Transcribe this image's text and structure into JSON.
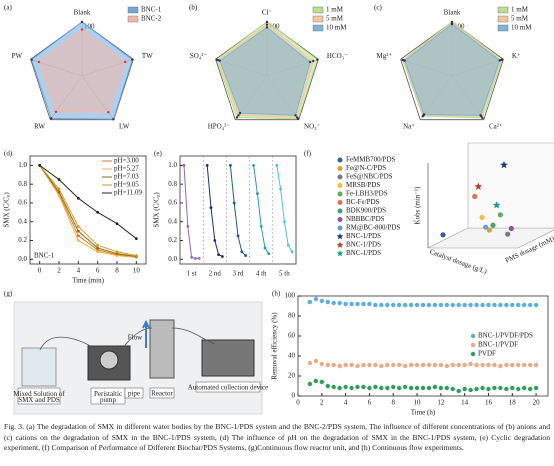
{
  "chart_data": [
    {
      "type": "radar",
      "panel": "(a)",
      "axes": [
        "Blank",
        "TW",
        "LW",
        "RW",
        "PW"
      ],
      "rlim": [
        0,
        100
      ],
      "rticks": [
        100
      ],
      "series": [
        {
          "name": "BNC-1",
          "color": "#6fa8dc",
          "values": [
            100,
            98,
            99,
            97,
            98
          ]
        },
        {
          "name": "BNC-2",
          "color": "#f4b8a8",
          "values": [
            86,
            84,
            83,
            82,
            84
          ]
        }
      ]
    },
    {
      "type": "radar",
      "panel": "(b)",
      "axes": [
        "Cl⁻",
        "HCO₃⁻",
        "NO₃⁻",
        "HPO₄²⁻",
        "SO₄²⁻"
      ],
      "rlim": [
        0,
        100
      ],
      "rticks": [
        100
      ],
      "series": [
        {
          "name": "1 mM",
          "color": "#b9e08a",
          "values": [
            100,
            98,
            98,
            95,
            98
          ]
        },
        {
          "name": "5 mM",
          "color": "#f2c6a0",
          "values": [
            95,
            90,
            95,
            90,
            95
          ]
        },
        {
          "name": "10 mM",
          "color": "#7fb3d5",
          "values": [
            90,
            84,
            90,
            85,
            92
          ]
        }
      ]
    },
    {
      "type": "radar",
      "panel": "(c)",
      "axes": [
        "Blank",
        "K⁺",
        "Ca²⁺",
        "Na⁺",
        "Mg²⁺"
      ],
      "rlim": [
        0,
        100
      ],
      "rticks": [
        100
      ],
      "series": [
        {
          "name": "1 mM",
          "color": "#b9e08a",
          "values": [
            100,
            98,
            96,
            92,
            96
          ]
        },
        {
          "name": "5 mM",
          "color": "#f2c6a0",
          "values": [
            98,
            95,
            92,
            90,
            94
          ]
        },
        {
          "name": "10 mM",
          "color": "#7fb3d5",
          "values": [
            96,
            93,
            90,
            88,
            92
          ]
        }
      ]
    },
    {
      "type": "line",
      "panel": "(d)",
      "annotation": "BNC-1",
      "xlabel": "Time (min)",
      "ylabel": "SMX (C/C₀)",
      "x": [
        0,
        2,
        4,
        6,
        8,
        10
      ],
      "xlim": [
        -1,
        11
      ],
      "xticks": [
        0,
        2,
        4,
        6,
        8,
        10
      ],
      "ylim": [
        -0.05,
        1.1
      ],
      "yticks": [
        {
          "value": 0,
          "label": "0.0"
        },
        {
          "value": 0.2,
          "label": "0.2"
        },
        {
          "value": 0.4,
          "label": "0.4"
        },
        {
          "value": 0.6,
          "label": "0.6"
        },
        {
          "value": 0.8,
          "label": "0.8"
        },
        {
          "value": 1,
          "label": "1.0"
        }
      ],
      "series": [
        {
          "name": "pH=3.00",
          "color": "#e8741c",
          "values": [
            1,
            0.7,
            0.25,
            0.1,
            0.05,
            0.03
          ]
        },
        {
          "name": "pH=5.27",
          "color": "#f2b134",
          "values": [
            1,
            0.68,
            0.2,
            0.08,
            0.04,
            0.02
          ]
        },
        {
          "name": "pH=7.03",
          "color": "#8a6d1e",
          "values": [
            1,
            0.72,
            0.3,
            0.12,
            0.06,
            0.03
          ]
        },
        {
          "name": "pH=9.05",
          "color": "#c9a227",
          "values": [
            1,
            0.75,
            0.35,
            0.15,
            0.08,
            0.04
          ]
        },
        {
          "name": "pH=11.09",
          "color": "#222222",
          "values": [
            1,
            0.85,
            0.65,
            0.5,
            0.38,
            0.22
          ]
        }
      ]
    },
    {
      "type": "cycle",
      "panel": "(e)",
      "ylabel": "SMX (C/C₀)",
      "ylim": [
        -0.05,
        1.1
      ],
      "yticks": [
        {
          "value": 0,
          "label": "0.0"
        },
        {
          "value": 0.2,
          "label": "0.2"
        },
        {
          "value": 0.4,
          "label": "0.4"
        },
        {
          "value": 0.6,
          "label": "0.6"
        },
        {
          "value": 0.8,
          "label": "0.8"
        },
        {
          "value": 1,
          "label": "1.0"
        }
      ],
      "categories": [
        "1 st",
        "2 nd",
        "3 rd",
        "4 th",
        "5 th"
      ],
      "series": [
        {
          "color": "#8e6cc2",
          "values": [
            1,
            0.35,
            0.02,
            0.01,
            0.01
          ]
        },
        {
          "color": "#1f2f6b",
          "values": [
            1,
            0.55,
            0.2,
            0.05,
            0.03
          ]
        },
        {
          "color": "#1f5f7a",
          "values": [
            1,
            0.6,
            0.25,
            0.08,
            0.04
          ]
        },
        {
          "color": "#2a9cb0",
          "values": [
            1,
            0.7,
            0.35,
            0.12,
            0.06
          ]
        },
        {
          "color": "#4fc3dc",
          "values": [
            1,
            0.75,
            0.4,
            0.15,
            0.08
          ]
        }
      ]
    },
    {
      "type": "scatter3d",
      "panel": "(f)",
      "zlabel": "Kobs (min⁻¹)",
      "xlabel": "Catalyst dosage (g/L)",
      "ylabel": "PMS dosage (mM)",
      "zlim": [
        0,
        1
      ],
      "series": [
        {
          "name": "FeMMB700/PDS",
          "color": "#3b5ba5",
          "marker": "circle",
          "values": [
            0.12
          ]
        },
        {
          "name": "Fe@N-C/PDS",
          "color": "#e0a030",
          "marker": "circle",
          "values": [
            0.08
          ]
        },
        {
          "name": "FeS@NBC/PDS",
          "color": "#7a7a7a",
          "marker": "circle",
          "values": [
            0.1
          ]
        },
        {
          "name": "MRSB/PDS",
          "color": "#f0c040",
          "marker": "circle",
          "values": [
            0.2
          ]
        },
        {
          "name": "Fe-LBH3/PDS",
          "color": "#5ab05a",
          "marker": "circle",
          "values": [
            0.3
          ]
        },
        {
          "name": "BC-Fe/PDS",
          "color": "#e07050",
          "marker": "circle",
          "values": [
            0.42
          ]
        },
        {
          "name": "BDK900/PDS",
          "color": "#4aa070",
          "marker": "circle",
          "values": [
            0.15
          ]
        },
        {
          "name": "NBBBC/PDS",
          "color": "#9050a0",
          "marker": "circle",
          "values": [
            0.18
          ]
        },
        {
          "name": "RM@BC-800/PDS",
          "color": "#60a0d0",
          "marker": "circle",
          "values": [
            0.1
          ]
        },
        {
          "name": "BNC-1/PDS",
          "color": "#1f3a8a",
          "marker": "star",
          "values": [
            0.9
          ]
        },
        {
          "name": "BNC-1/PDS",
          "color": "#c0392b",
          "marker": "star",
          "values": [
            0.55
          ]
        },
        {
          "name": "BNC-1/PDS",
          "color": "#16a085",
          "marker": "star",
          "values": [
            0.4
          ]
        }
      ]
    },
    {
      "type": "scatter",
      "panel": "(h)",
      "xlabel": "Time (h)",
      "ylabel": "Removal efficiency (%)",
      "xlim": [
        0,
        21
      ],
      "xticks": [
        0,
        2,
        4,
        6,
        8,
        10,
        12,
        14,
        16,
        18,
        20
      ],
      "ylim": [
        0,
        100
      ],
      "yticks": [
        0,
        20,
        40,
        60,
        80,
        100
      ],
      "x": [
        1,
        1.5,
        2,
        2.5,
        3,
        3.5,
        4,
        4.5,
        5,
        5.5,
        6,
        6.5,
        7,
        7.5,
        8,
        8.5,
        9,
        9.5,
        10,
        10.5,
        11,
        11.5,
        12,
        12.5,
        13,
        13.5,
        14,
        14.5,
        15,
        15.5,
        16,
        16.5,
        17,
        17.5,
        18,
        18.5,
        19,
        19.5,
        20
      ],
      "series": [
        {
          "name": "BNC-1/PVDF/PDS",
          "color": "#5aaee0",
          "values": [
            94,
            97,
            95,
            94,
            93,
            93,
            92,
            92,
            92,
            92,
            92,
            91,
            91,
            91,
            91,
            91,
            91,
            91,
            91,
            91,
            91,
            91,
            91,
            91,
            91,
            91,
            91,
            91,
            91,
            91,
            91,
            91,
            91,
            91,
            91,
            91,
            91,
            91,
            91
          ]
        },
        {
          "name": "BNC-1/PVDF",
          "color": "#f0a880",
          "values": [
            33,
            35,
            32,
            31,
            31,
            30,
            31,
            31,
            30,
            31,
            31,
            31,
            30,
            31,
            31,
            31,
            30,
            31,
            31,
            31,
            31,
            31,
            31,
            30,
            31,
            31,
            31,
            32,
            31,
            31,
            31,
            31,
            30,
            31,
            31,
            31,
            31,
            31,
            31
          ]
        },
        {
          "name": "PVDF",
          "color": "#2e9e5e",
          "values": [
            12,
            15,
            14,
            10,
            9,
            8,
            9,
            8,
            9,
            9,
            8,
            9,
            8,
            8,
            9,
            8,
            9,
            8,
            8,
            8,
            8,
            9,
            8,
            8,
            7,
            5,
            7,
            6,
            7,
            8,
            7,
            8,
            8,
            7,
            8,
            7,
            8,
            7,
            8
          ]
        }
      ]
    }
  ],
  "diagram": {
    "panel": "(g)",
    "labels": [
      "Mixed Solution of SMX and PDS",
      "Peristaltic pump",
      "pipe",
      "Reactor",
      "Flow",
      "Automated collection device"
    ]
  },
  "caption": "Fig. 3. (a) The degradation of SMX in different water bodies by the BNC-1/PDS system and the BNC-2/PDS system, The influence of different concentrations of (b) anions and (c) cations on the degradation of SMX in the BNC-1/PDS system, (d) The influence of pH on the degradation of SMX in the BNC-1/PDS system, (e) Cyclic degradation experiment, (f) Comparison of Performance of Different Biochar/PDS Systems, (g)Continuous flow reactor unit, and (h) Continuous flow experiments."
}
